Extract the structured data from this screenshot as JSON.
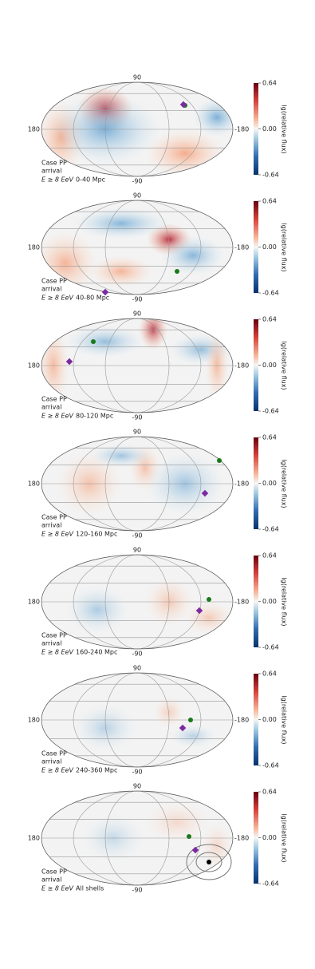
{
  "axis_labels": {
    "top": "90",
    "bottom": "-90",
    "left": "180",
    "right": "-180"
  },
  "colorbar": {
    "label": "lg(relative flux)",
    "ticks": [
      {
        "value": 0.64,
        "label": "0.64"
      },
      {
        "value": 0,
        "label": "0.00"
      },
      {
        "value": -0.64,
        "label": "-0.64"
      }
    ],
    "lim": [
      -0.64,
      0.64
    ]
  },
  "panels": [
    {
      "case": "Case PP",
      "mode": "arrival",
      "energy": "E ≥ 8 EeV",
      "shell": "0-40 Mpc"
    },
    {
      "case": "Case PP",
      "mode": "arrival",
      "energy": "E ≥ 8 EeV",
      "shell": "40-80 Mpc"
    },
    {
      "case": "Case PP",
      "mode": "arrival",
      "energy": "E ≥ 8 EeV",
      "shell": "80-120 Mpc"
    },
    {
      "case": "Case PP",
      "mode": "arrival",
      "energy": "E ≥ 8 EeV",
      "shell": "120-160 Mpc"
    },
    {
      "case": "Case PP",
      "mode": "arrival",
      "energy": "E ≥ 8 EeV",
      "shell": "160-240 Mpc"
    },
    {
      "case": "Case PP",
      "mode": "arrival",
      "energy": "E ≥ 8 EeV",
      "shell": "240-360 Mpc"
    },
    {
      "case": "Case PP",
      "mode": "arrival",
      "energy": "E ≥ 8 EeV",
      "shell": "All shells"
    }
  ]
}
